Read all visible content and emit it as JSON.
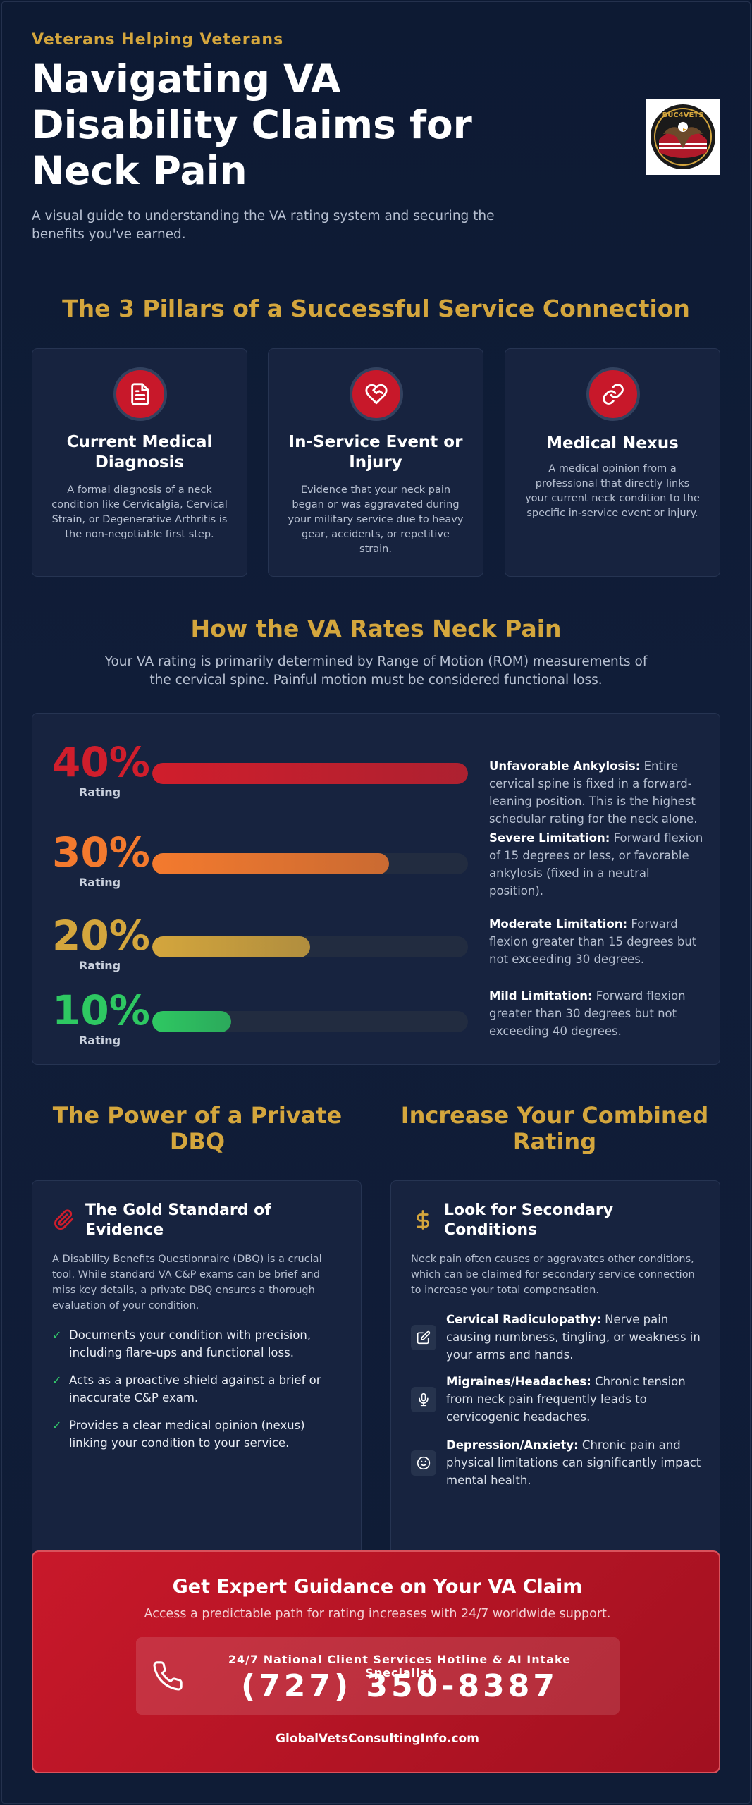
{
  "header": {
    "eyebrow": "Veterans Helping Veterans",
    "title": "Navigating VA Disability Claims for Neck Pain",
    "subtitle": "A visual guide to understanding the VA rating system and securing the benefits you've earned.",
    "logo_icon": "eagle-flag-seal-logo",
    "logo_text": "BUC4VETS"
  },
  "pillars": {
    "title": "The 3 Pillars of a Successful Service Connection",
    "items": [
      {
        "icon": "document-icon",
        "heading": "Current Medical Diagnosis",
        "text": "A formal diagnosis of a neck condition like Cervicalgia, Cervical Strain, or Degenerative Arthritis is the non-negotiable first step."
      },
      {
        "icon": "heart-hand-icon",
        "heading": "In-Service Event or Injury",
        "text": "Evidence that your neck pain began or was aggravated during your military service due to heavy gear, accidents, or repetitive strain."
      },
      {
        "icon": "link-icon",
        "heading": "Medical Nexus",
        "text": "A medical opinion from a professional that directly links your current neck condition to the specific in-service event or injury."
      }
    ]
  },
  "rates": {
    "title": "How the VA Rates Neck Pain",
    "intro": "Your VA rating is primarily determined by Range of Motion (ROM) measurements of the cervical spine. Painful motion must be considered functional loss.",
    "rating_label": "Rating",
    "rows": [
      {
        "pct": "40%",
        "fill": 1.0,
        "color": "#d01e2c",
        "term": "Unfavorable Ankylosis:",
        "desc": " Entire cervical spine is fixed in a forward-leaning position. This is the highest schedular rating for the neck alone."
      },
      {
        "pct": "30%",
        "fill": 0.75,
        "color": "#f47a2e",
        "term": "Severe Limitation:",
        "desc": " Forward flexion of 15 degrees or less, or favorable ankylosis (fixed in a neutral position)."
      },
      {
        "pct": "20%",
        "fill": 0.5,
        "color": "#d4a63d",
        "term": "Moderate Limitation:",
        "desc": " Forward flexion greater than 15 degrees but not exceeding 30 degrees."
      },
      {
        "pct": "10%",
        "fill": 0.25,
        "color": "#2ec862",
        "term": "Mild Limitation:",
        "desc": " Forward flexion greater than 30 degrees but not exceeding 40 degrees."
      }
    ]
  },
  "dbq": {
    "title": "The Power of a Private DBQ",
    "card_title": "The Gold Standard of Evidence",
    "icon": "paperclip-icon",
    "intro": "A Disability Benefits Questionnaire (DBQ) is a crucial tool. While standard VA C&P exams can be brief and miss key details, a private DBQ ensures a thorough evaluation of your condition.",
    "checkmark": "✓",
    "points": [
      "Documents your condition with precision, including flare-ups and functional loss.",
      "Acts as a proactive shield against a brief or inaccurate C&P exam.",
      "Provides a clear medical opinion (nexus) linking your condition to your service."
    ]
  },
  "secondary": {
    "title": "Increase Your Combined Rating",
    "card_title": "Look for Secondary Conditions",
    "icon": "dollar-icon",
    "intro": "Neck pain often causes or aggravates other conditions, which can be claimed for secondary service connection to increase your total compensation.",
    "items": [
      {
        "icon": "pen-square-icon",
        "term": "Cervical Radiculopathy:",
        "desc": " Nerve pain causing numbness, tingling, or weakness in your arms and hands."
      },
      {
        "icon": "microphone-icon",
        "term": "Migraines/Headaches:",
        "desc": " Chronic tension from neck pain frequently leads to cervicogenic headaches."
      },
      {
        "icon": "smile-face-icon",
        "term": "Depression/Anxiety:",
        "desc": " Chronic pain and physical limitations can significantly impact mental health."
      }
    ]
  },
  "cta": {
    "title": "Get Expert Guidance on Your VA Claim",
    "subtitle": "Access a predictable path for rating increases with 24/7 worldwide support.",
    "hotline_label": "24/7 National Client Services Hotline & AI Intake Specialist",
    "phone": "(727) 350-8387",
    "phone_icon": "phone-icon",
    "website": "GlobalVetsConsultingInfo.com"
  }
}
